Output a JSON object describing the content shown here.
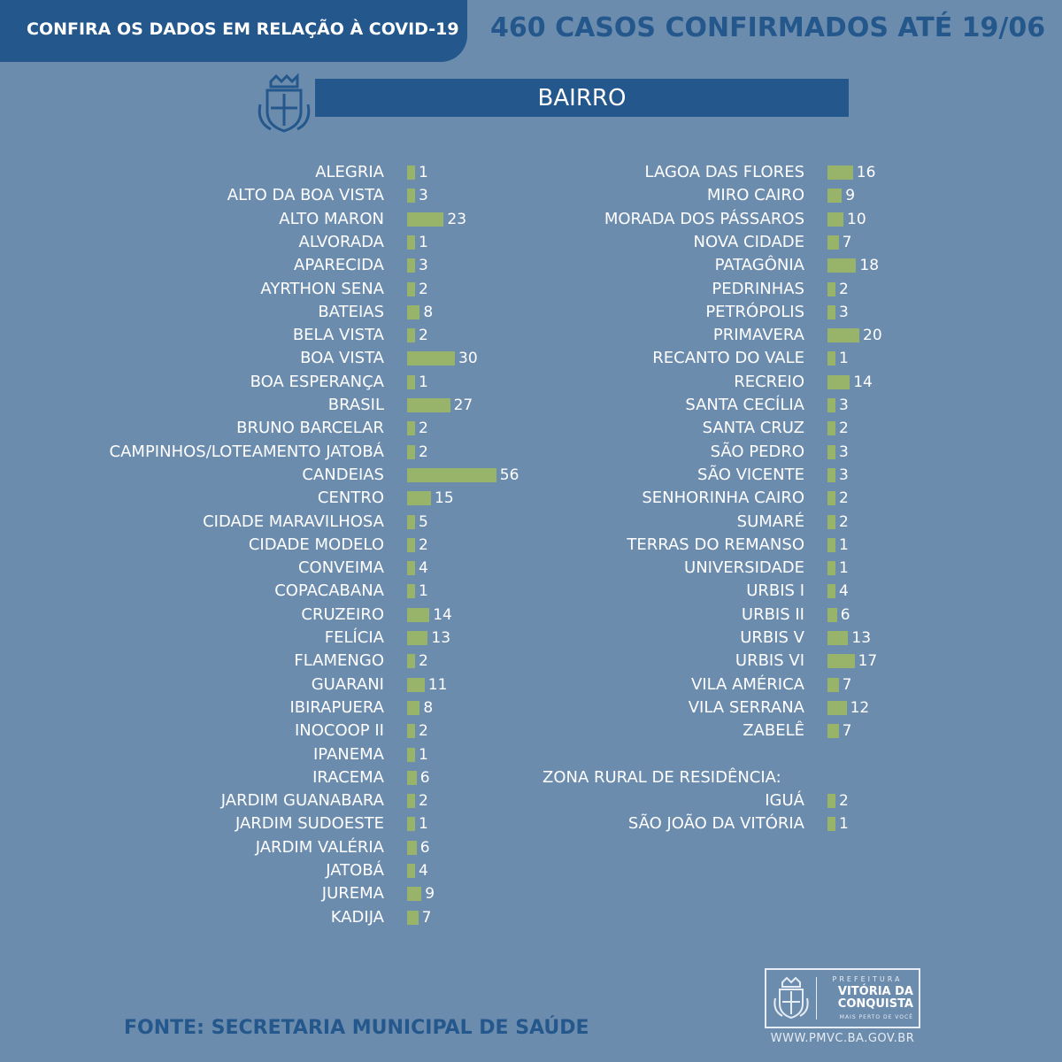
{
  "header": {
    "tab_title": "CONFIRA OS DADOS EM RELAÇÃO À COVID-19",
    "headline": "460 CASOS CONFIRMADOS ATÉ 19/06"
  },
  "section": {
    "title": "BAIRRO"
  },
  "colors": {
    "background": "#6c8cae",
    "primary": "#24578b",
    "bar": "#98b46b",
    "text": "#ffffff"
  },
  "chart_data": [
    {
      "type": "bar",
      "orientation": "horizontal",
      "title": "",
      "xlabel": "",
      "ylabel": "",
      "categories": [
        "ALEGRIA",
        "ALTO DA BOA VISTA",
        "ALTO MARON",
        "ALVORADA",
        "APARECIDA",
        "AYRTHON SENA",
        "BATEIAS",
        "BELA VISTA",
        "BOA VISTA",
        "BOA ESPERANÇA",
        "BRASIL",
        "BRUNO BARCELAR",
        "CAMPINHOS/LOTEAMENTO JATOBÁ",
        "CANDEIAS",
        "CENTRO",
        "CIDADE MARAVILHOSA",
        "CIDADE MODELO",
        "CONVEIMA",
        "COPACABANA",
        "CRUZEIRO",
        "FELÍCIA",
        "FLAMENGO",
        "GUARANI",
        "IBIRAPUERA",
        "INOCOOP II",
        "IPANEMA",
        "IRACEMA",
        "JARDIM GUANABARA",
        "JARDIM SUDOESTE",
        "JARDIM VALÉRIA",
        "JATOBÁ",
        "JUREMA",
        "KADIJA"
      ],
      "values": [
        1,
        3,
        23,
        1,
        3,
        2,
        8,
        2,
        30,
        1,
        27,
        2,
        2,
        56,
        15,
        5,
        2,
        4,
        1,
        14,
        13,
        2,
        11,
        8,
        2,
        1,
        6,
        2,
        1,
        6,
        4,
        9,
        7
      ],
      "data_labels": true
    },
    {
      "type": "bar",
      "orientation": "horizontal",
      "title": "",
      "xlabel": "",
      "ylabel": "",
      "categories": [
        "LAGOA DAS FLORES",
        "MIRO CAIRO",
        "MORADA DOS PÁSSAROS",
        "NOVA CIDADE",
        "PATAGÔNIA",
        "PEDRINHAS",
        "PETRÓPOLIS",
        "PRIMAVERA",
        "RECANTO DO VALE",
        "RECREIO",
        "SANTA CECÍLIA",
        "SANTA CRUZ",
        "SÃO PEDRO",
        "SÃO VICENTE",
        "SENHORINHA CAIRO",
        "SUMARÉ",
        "TERRAS DO REMANSO",
        "UNIVERSIDADE",
        "URBIS I",
        "URBIS II",
        "URBIS V",
        "URBIS VI",
        "VILA AMÉRICA",
        "VILA SERRANA",
        "ZABELÊ"
      ],
      "values": [
        16,
        9,
        10,
        7,
        18,
        2,
        3,
        20,
        1,
        14,
        3,
        2,
        3,
        3,
        2,
        2,
        1,
        1,
        4,
        6,
        13,
        17,
        7,
        12,
        7
      ],
      "data_labels": true
    },
    {
      "type": "bar",
      "orientation": "horizontal",
      "title": "ZONA RURAL DE RESIDÊNCIA:",
      "xlabel": "",
      "ylabel": "",
      "categories": [
        "IGUÁ",
        "SÃO JOÃO DA VITÓRIA"
      ],
      "values": [
        2,
        1
      ],
      "data_labels": true
    }
  ],
  "footer": {
    "source": "FONTE: SECRETARIA MUNICIPAL DE SAÚDE",
    "brand_prefix": "PREFEITURA",
    "brand_name": "VITÓRIA DA CONQUISTA",
    "brand_tagline": "MAIS PERTO DE VOCÊ",
    "url": "WWW.PMVC.BA.GOV.BR"
  },
  "icons": [
    "city-crest-icon",
    "brand-crest-icon"
  ]
}
